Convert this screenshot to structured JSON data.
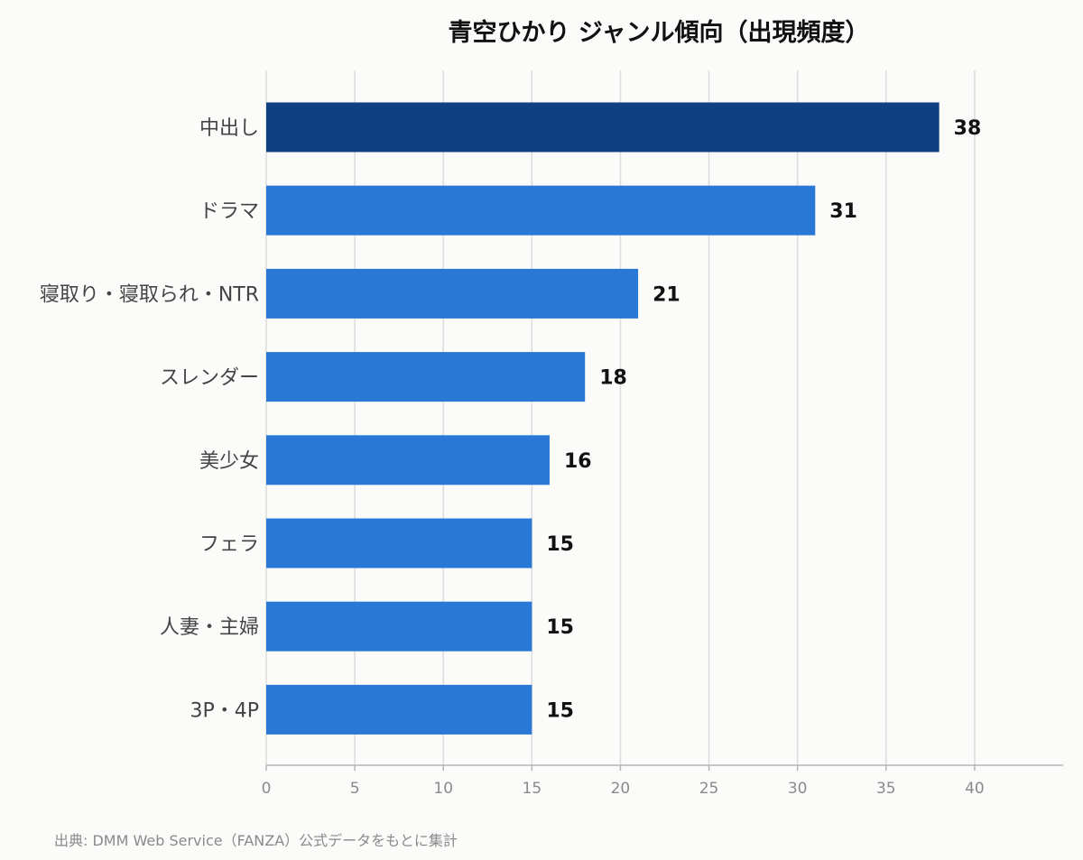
{
  "chart_data": {
    "type": "bar",
    "orientation": "horizontal",
    "title": "青空ひかり ジャンル傾向（出現頻度）",
    "categories": [
      "中出し",
      "ドラマ",
      "寝取り・寝取られ・NTR",
      "スレンダー",
      "美少女",
      "フェラ",
      "人妻・主婦",
      "3P・4P"
    ],
    "values": [
      38,
      31,
      21,
      18,
      16,
      15,
      15,
      15
    ],
    "xlabel": "",
    "ylabel": "",
    "xlim": [
      0,
      45
    ],
    "ticks": [
      "0",
      "5",
      "10",
      "15",
      "20",
      "25",
      "30",
      "35",
      "40"
    ],
    "grid": true,
    "legend": "none",
    "highlight_index": 0
  },
  "colors": {
    "highlight_bar": "#0f4083",
    "bar": "#2a78d6",
    "grid": "#dcdcdc",
    "axis": "#b5b5b5"
  },
  "source": "出典: DMM Web Service（FANZA）公式データをもとに集計"
}
